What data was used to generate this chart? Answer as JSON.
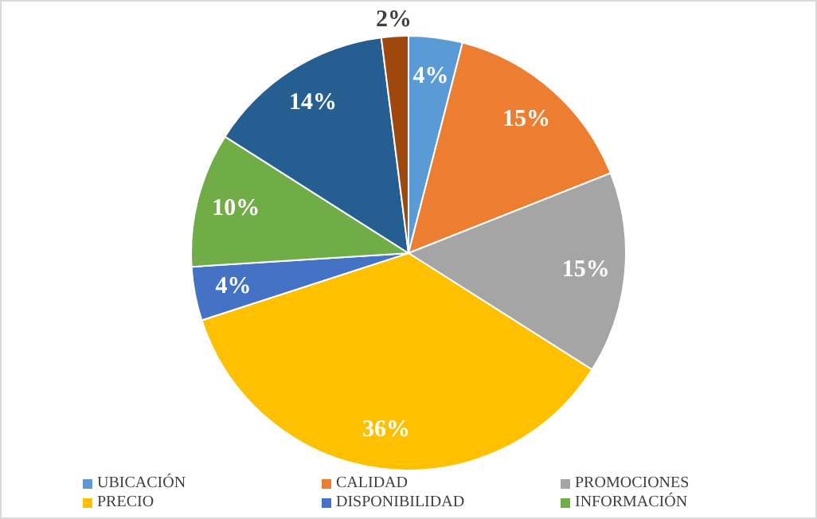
{
  "chart_data": {
    "type": "pie",
    "categories": [
      "UBICACIÓN",
      "CALIDAD",
      "PROMOCIONES",
      "PRECIO",
      "DISPONIBILIDAD",
      "INFORMACIÓN",
      null,
      null
    ],
    "values": [
      4,
      15,
      15,
      36,
      4,
      10,
      14,
      2
    ],
    "value_labels": [
      "4%",
      "15%",
      "15%",
      "36%",
      "4%",
      "10%",
      "14%",
      "2%"
    ],
    "colors": [
      "#5b9bd5",
      "#ed7d31",
      "#a5a5a5",
      "#ffc000",
      "#4472c4",
      "#70ad47",
      "#255e91",
      "#9e480e"
    ],
    "legend": "bottom"
  }
}
